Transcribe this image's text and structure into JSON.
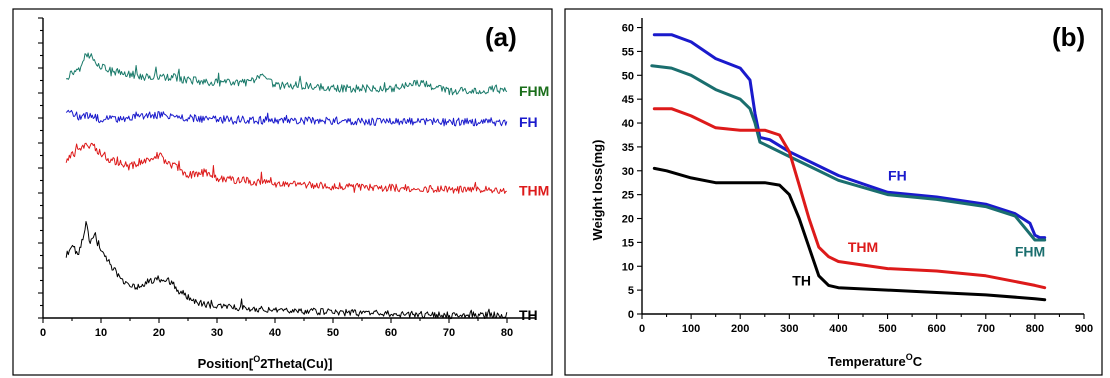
{
  "chart_data": [
    {
      "type": "line",
      "panel_label": "(a)",
      "xlabel": "Position[°2Theta(Cu)]",
      "xlabel_parts": {
        "before": "Position[",
        "sup": "O",
        "after": "2Theta(Cu)]"
      },
      "ylabel": "",
      "xlim": [
        0,
        85
      ],
      "xticks": [
        "0",
        "10",
        "20",
        "30",
        "40",
        "50",
        "60",
        "70",
        "80"
      ],
      "y_ticks_labeled": false,
      "grid": false,
      "series": [
        {
          "name": "FHM",
          "color": "#1a7a6a",
          "label_color": "#1a6e1a",
          "x": [
            4,
            6,
            7,
            8,
            9,
            10,
            12,
            15,
            18,
            20,
            22,
            25,
            30,
            35,
            38,
            40,
            45,
            50,
            55,
            60,
            65,
            70,
            75,
            78,
            80
          ],
          "y": [
            0.86,
            0.89,
            0.93,
            0.94,
            0.92,
            0.9,
            0.88,
            0.87,
            0.86,
            0.86,
            0.86,
            0.85,
            0.84,
            0.84,
            0.86,
            0.83,
            0.83,
            0.82,
            0.82,
            0.82,
            0.84,
            0.81,
            0.81,
            0.82,
            0.81
          ]
        },
        {
          "name": "FH",
          "color": "#1a1acc",
          "label_color": "#1a1acc",
          "x": [
            4,
            6,
            8,
            10,
            15,
            20,
            22,
            25,
            30,
            40,
            50,
            60,
            70,
            80
          ],
          "y": [
            0.74,
            0.72,
            0.72,
            0.71,
            0.715,
            0.725,
            0.72,
            0.715,
            0.71,
            0.705,
            0.705,
            0.7,
            0.7,
            0.7
          ]
        },
        {
          "name": "THM",
          "color": "#dd1a1a",
          "label_color": "#dd1a1a",
          "x": [
            4,
            6,
            8,
            10,
            12,
            15,
            18,
            20,
            22,
            25,
            28,
            30,
            35,
            40,
            50,
            60,
            70,
            80
          ],
          "y": [
            0.56,
            0.6,
            0.62,
            0.59,
            0.56,
            0.54,
            0.57,
            0.58,
            0.55,
            0.51,
            0.52,
            0.5,
            0.49,
            0.48,
            0.47,
            0.465,
            0.46,
            0.455
          ]
        },
        {
          "name": "TH",
          "color": "#000000",
          "label_color": "#000000",
          "x": [
            4,
            5,
            6,
            7,
            7.5,
            8,
            9,
            10,
            12,
            14,
            16,
            18,
            20,
            22,
            24,
            26,
            30,
            35,
            40,
            50,
            60,
            70,
            80
          ],
          "y": [
            0.22,
            0.27,
            0.22,
            0.29,
            0.35,
            0.26,
            0.3,
            0.24,
            0.18,
            0.13,
            0.11,
            0.13,
            0.14,
            0.13,
            0.09,
            0.06,
            0.04,
            0.035,
            0.03,
            0.02,
            0.015,
            0.01,
            0.01
          ]
        }
      ]
    },
    {
      "type": "line",
      "panel_label": "(b)",
      "xlabel": "Temperature°C",
      "xlabel_parts": {
        "before": "Temperature",
        "sup": "O",
        "after": "C"
      },
      "ylabel": "Weight loss(mg)",
      "xlim": [
        0,
        900
      ],
      "ylim": [
        0,
        62
      ],
      "xticks": [
        0,
        100,
        200,
        300,
        400,
        500,
        600,
        700,
        800,
        900
      ],
      "yticks": [
        0,
        5,
        10,
        15,
        20,
        25,
        30,
        35,
        40,
        45,
        50,
        55,
        60
      ],
      "grid": false,
      "series": [
        {
          "name": "FH",
          "color": "#1a1acc",
          "x": [
            25,
            60,
            100,
            150,
            200,
            220,
            230,
            240,
            260,
            300,
            350,
            400,
            500,
            600,
            700,
            760,
            790,
            800,
            810,
            820
          ],
          "y": [
            58.5,
            58.5,
            57,
            53.5,
            51.5,
            49,
            42,
            37,
            36.5,
            34,
            31.5,
            29,
            25.5,
            24.5,
            23,
            21,
            19,
            16.5,
            16,
            16
          ]
        },
        {
          "name": "FHM",
          "color": "#1a6e6e",
          "x": [
            20,
            60,
            100,
            150,
            200,
            220,
            230,
            240,
            260,
            300,
            350,
            400,
            500,
            600,
            700,
            760,
            780,
            800,
            810,
            820
          ],
          "y": [
            52,
            51.5,
            50,
            47,
            45,
            43,
            40,
            36,
            35,
            33,
            30.5,
            28,
            25,
            24,
            22.5,
            20.5,
            18,
            15.5,
            15.5,
            15.5
          ]
        },
        {
          "name": "THM",
          "color": "#dd1a1a",
          "x": [
            25,
            60,
            100,
            150,
            200,
            250,
            280,
            300,
            320,
            340,
            360,
            380,
            400,
            500,
            600,
            650,
            700,
            800,
            820
          ],
          "y": [
            43,
            43,
            41.5,
            39,
            38.5,
            38.5,
            37.5,
            34,
            27,
            20,
            14,
            12,
            11,
            9.5,
            9,
            8.5,
            8,
            6,
            5.5
          ]
        },
        {
          "name": "TH",
          "color": "#000000",
          "x": [
            25,
            50,
            100,
            150,
            200,
            250,
            280,
            300,
            320,
            340,
            360,
            380,
            400,
            500,
            600,
            700,
            800,
            820
          ],
          "y": [
            30.5,
            30,
            28.5,
            27.5,
            27.5,
            27.5,
            27,
            25,
            20,
            14,
            8,
            6,
            5.5,
            5,
            4.5,
            4,
            3.2,
            3
          ]
        }
      ],
      "annotations": [
        {
          "text": "FH",
          "color": "#1a1acc"
        },
        {
          "text": "THM",
          "color": "#dd1a1a"
        },
        {
          "text": "FHM",
          "color": "#1a6e6e"
        },
        {
          "text": "TH",
          "color": "#000000"
        }
      ]
    }
  ]
}
